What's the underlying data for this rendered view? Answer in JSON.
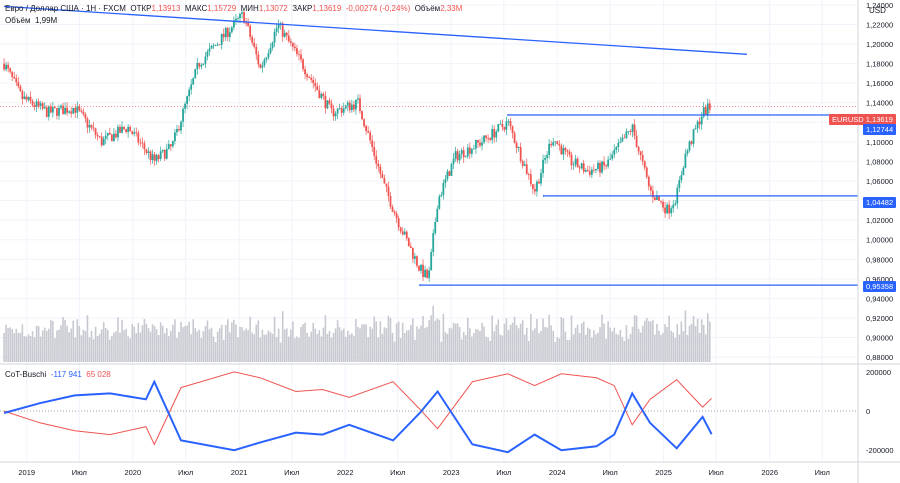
{
  "header": {
    "symbol_desc": "Евро / Доллар США · 1Н · FXCM",
    "open_label": "ОТКР",
    "open": "1,13913",
    "high_label": "МАКС",
    "high": "1,15729",
    "low_label": "МИН",
    "low": "1,13072",
    "close_label": "ЗАКР",
    "close": "1,13619",
    "change": "-0,00274 (-0,24%)",
    "volume_label": "Объём",
    "volume": "2,33М"
  },
  "volume_legend": {
    "label": "Объём",
    "value": "1,99М"
  },
  "cot_legend": {
    "label": "CoT-Buschi",
    "blue_value": "-117 941",
    "red_value": "65 028"
  },
  "price_axis": {
    "currency": "USD",
    "ticks": [
      "1,24000",
      "1,22000",
      "1,20000",
      "1,18000",
      "1,16000",
      "1,14000",
      "1,12000",
      "1,10000",
      "1,08000",
      "1,06000",
      "1,04000",
      "1,02000",
      "1,00000",
      "0,98000",
      "0,96000",
      "0,94000",
      "0,92000",
      "0,90000",
      "0,88000"
    ]
  },
  "cot_axis": {
    "ticks": [
      "200000",
      "0",
      "-200000"
    ]
  },
  "time_axis": {
    "ticks": [
      "2019",
      "Июл",
      "2020",
      "Июл",
      "2021",
      "Июл",
      "2022",
      "Июл",
      "2023",
      "Июл",
      "2024",
      "Июл",
      "2025",
      "Июл",
      "2026",
      "Июл"
    ]
  },
  "price_tags": [
    {
      "text": "EURUSD",
      "value": "1,13619",
      "color": "#ef5350"
    },
    {
      "text": "1,12744",
      "color": "#2962ff"
    },
    {
      "text": "1,04482",
      "color": "#2962ff"
    },
    {
      "text": "0,95358",
      "color": "#2962ff"
    }
  ],
  "chart_data": {
    "type": "candlestick",
    "symbol": "EURUSD",
    "price_range": [
      0.875,
      1.245
    ],
    "cot_range": [
      -260000,
      230000
    ],
    "levels": [
      1.12744,
      1.04482,
      0.95358
    ],
    "current_price": 1.13619,
    "trendline": {
      "from": [
        "2018-10",
        1.2385
      ],
      "to": [
        "2025-10",
        1.1895
      ]
    },
    "weekly_close_path": [
      [
        "2018-10",
        1.18
      ],
      [
        "2018-12",
        1.145
      ],
      [
        "2019-03",
        1.13
      ],
      [
        "2019-06",
        1.135
      ],
      [
        "2019-09",
        1.1
      ],
      [
        "2019-12",
        1.115
      ],
      [
        "2020-03",
        1.08
      ],
      [
        "2020-05",
        1.095
      ],
      [
        "2020-08",
        1.18
      ],
      [
        "2020-12",
        1.22
      ],
      [
        "2021-01",
        1.23
      ],
      [
        "2021-03",
        1.175
      ],
      [
        "2021-05",
        1.22
      ],
      [
        "2021-08",
        1.175
      ],
      [
        "2021-11",
        1.13
      ],
      [
        "2022-02",
        1.14
      ],
      [
        "2022-05",
        1.055
      ],
      [
        "2022-07",
        1.01
      ],
      [
        "2022-09",
        0.97
      ],
      [
        "2022-10",
        0.96
      ],
      [
        "2022-11",
        1.04
      ],
      [
        "2023-01",
        1.085
      ],
      [
        "2023-04",
        1.1
      ],
      [
        "2023-07",
        1.12
      ],
      [
        "2023-10",
        1.05
      ],
      [
        "2023-12",
        1.105
      ],
      [
        "2024-02",
        1.08
      ],
      [
        "2024-04",
        1.07
      ],
      [
        "2024-06",
        1.075
      ],
      [
        "2024-09",
        1.115
      ],
      [
        "2024-11",
        1.05
      ],
      [
        "2025-01",
        1.03
      ],
      [
        "2025-02",
        1.045
      ],
      [
        "2025-03",
        1.085
      ],
      [
        "2025-05",
        1.13
      ],
      [
        "2025-06",
        1.136
      ]
    ],
    "cot_blue_path": [
      [
        "2018-10",
        -10000
      ],
      [
        "2019-02",
        40000
      ],
      [
        "2019-06",
        80000
      ],
      [
        "2019-10",
        90000
      ],
      [
        "2020-02",
        60000
      ],
      [
        "2020-03",
        150000
      ],
      [
        "2020-06",
        -150000
      ],
      [
        "2020-12",
        -200000
      ],
      [
        "2021-03",
        -160000
      ],
      [
        "2021-07",
        -110000
      ],
      [
        "2021-10",
        -120000
      ],
      [
        "2022-01",
        -70000
      ],
      [
        "2022-06",
        -150000
      ],
      [
        "2022-09",
        -10000
      ],
      [
        "2022-11",
        100000
      ],
      [
        "2023-03",
        -170000
      ],
      [
        "2023-07",
        -210000
      ],
      [
        "2023-10",
        -120000
      ],
      [
        "2024-01",
        -200000
      ],
      [
        "2024-05",
        -180000
      ],
      [
        "2024-07",
        -120000
      ],
      [
        "2024-09",
        90000
      ],
      [
        "2024-11",
        -60000
      ],
      [
        "2025-02",
        -190000
      ],
      [
        "2025-05",
        -30000
      ],
      [
        "2025-06",
        -117941
      ]
    ],
    "cot_red_path": [
      [
        "2018-10",
        0
      ],
      [
        "2019-02",
        -60000
      ],
      [
        "2019-06",
        -100000
      ],
      [
        "2019-10",
        -120000
      ],
      [
        "2020-02",
        -80000
      ],
      [
        "2020-03",
        -170000
      ],
      [
        "2020-06",
        120000
      ],
      [
        "2020-12",
        200000
      ],
      [
        "2021-03",
        170000
      ],
      [
        "2021-07",
        100000
      ],
      [
        "2021-10",
        110000
      ],
      [
        "2022-01",
        70000
      ],
      [
        "2022-06",
        150000
      ],
      [
        "2022-09",
        10000
      ],
      [
        "2022-11",
        -90000
      ],
      [
        "2023-03",
        150000
      ],
      [
        "2023-07",
        190000
      ],
      [
        "2023-10",
        130000
      ],
      [
        "2024-01",
        190000
      ],
      [
        "2024-05",
        170000
      ],
      [
        "2024-07",
        130000
      ],
      [
        "2024-09",
        -70000
      ],
      [
        "2024-11",
        60000
      ],
      [
        "2025-02",
        160000
      ],
      [
        "2025-05",
        20000
      ],
      [
        "2025-06",
        65028
      ]
    ]
  }
}
